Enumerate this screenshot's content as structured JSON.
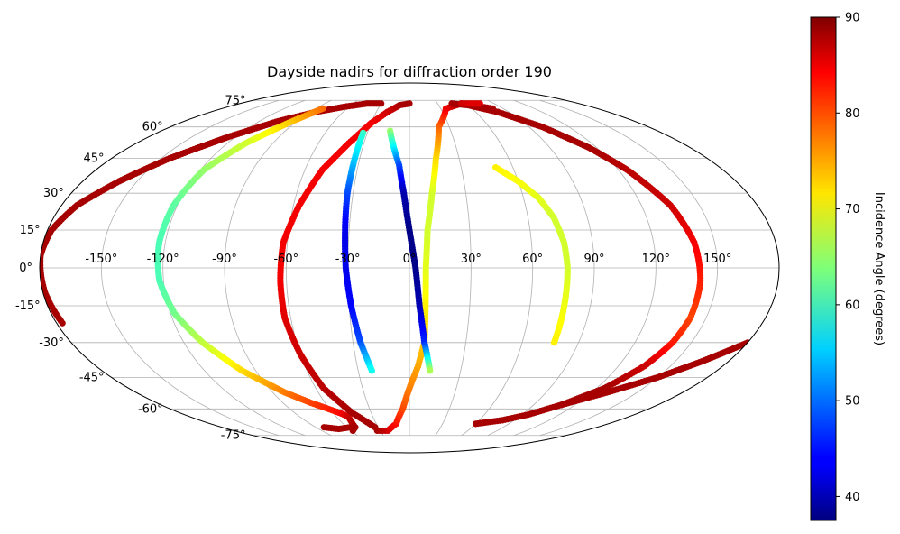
{
  "chart_data": {
    "type": "scatter",
    "projection": "mollweide",
    "title": "Dayside nadirs for diffraction order 190",
    "grid": true,
    "lon_ticks": [
      "-150°",
      "-120°",
      "-90°",
      "-60°",
      "-30°",
      "0°",
      "30°",
      "60°",
      "90°",
      "120°",
      "150°"
    ],
    "lon_tick_values": [
      -150,
      -120,
      -90,
      -60,
      -30,
      0,
      30,
      60,
      90,
      120,
      150
    ],
    "lat_ticks": [
      "75°",
      "60°",
      "45°",
      "30°",
      "15°",
      "0°",
      "-15°",
      "-30°",
      "-45°",
      "-60°",
      "-75°"
    ],
    "lat_tick_values": [
      75,
      60,
      45,
      30,
      15,
      0,
      -15,
      -30,
      -45,
      -60,
      -75
    ],
    "colorbar": {
      "label": "Incidence Angle (degrees)",
      "colormap": "jet",
      "range": [
        37.5,
        90
      ],
      "ticks": [
        "40",
        "50",
        "60",
        "70",
        "80",
        "90"
      ],
      "tick_values": [
        40,
        50,
        60,
        70,
        80,
        90
      ]
    },
    "series": [
      {
        "points": [
          [
            -177,
            -22,
            88
          ],
          [
            -179,
            -10,
            88
          ],
          [
            -180,
            5,
            88
          ],
          [
            -178,
            15,
            88
          ],
          [
            -172,
            25,
            88
          ],
          [
            -160,
            35,
            88
          ],
          [
            -145,
            45,
            88
          ],
          [
            -125,
            55,
            88
          ],
          [
            -105,
            63,
            88
          ],
          [
            -85,
            68,
            88
          ],
          [
            -65,
            71,
            88
          ],
          [
            -45,
            73,
            88
          ],
          [
            -30,
            73,
            88
          ]
        ]
      },
      {
        "points": [
          [
            -83,
            70,
            78
          ],
          [
            -95,
            62,
            73
          ],
          [
            -108,
            52,
            68
          ],
          [
            -118,
            40,
            65
          ],
          [
            -122,
            25,
            62
          ],
          [
            -123,
            10,
            61
          ],
          [
            -122,
            -5,
            61
          ],
          [
            -118,
            -18,
            63
          ],
          [
            -110,
            -30,
            67
          ],
          [
            -98,
            -42,
            72
          ],
          [
            -82,
            -52,
            77
          ],
          [
            -70,
            -57,
            80
          ],
          [
            -55,
            -62,
            83
          ],
          [
            -50,
            -64,
            86
          ],
          [
            -52,
            -70,
            88
          ],
          [
            -58,
            -72,
            88
          ]
        ]
      },
      {
        "points": [
          [
            -57,
            -70,
            88
          ],
          [
            -70,
            -71,
            88
          ],
          [
            -82,
            -70,
            88
          ]
        ]
      },
      {
        "points": [
          [
            -33,
            -72,
            88
          ],
          [
            -22,
            -72,
            86
          ],
          [
            -12,
            -68,
            83
          ],
          [
            -5,
            -60,
            80
          ],
          [
            0,
            -50,
            77
          ],
          [
            5,
            -40,
            75
          ],
          [
            8,
            -30,
            73
          ],
          [
            8,
            -15,
            71
          ],
          [
            8,
            0,
            69
          ],
          [
            9,
            15,
            68
          ],
          [
            12,
            30,
            68
          ],
          [
            16,
            45,
            72
          ],
          [
            22,
            60,
            78
          ],
          [
            35,
            70,
            84
          ],
          [
            55,
            73,
            88
          ],
          [
            80,
            70,
            88
          ]
        ]
      },
      {
        "points": [
          [
            0,
            73,
            88
          ],
          [
            -10,
            72,
            88
          ],
          [
            -20,
            68,
            86
          ],
          [
            -30,
            62,
            84
          ],
          [
            -40,
            52,
            84
          ],
          [
            -50,
            40,
            84
          ],
          [
            -57,
            25,
            84
          ],
          [
            -62,
            10,
            84
          ],
          [
            -63,
            -5,
            84
          ],
          [
            -63,
            -20,
            85
          ],
          [
            -60,
            -35,
            86
          ],
          [
            -55,
            -50,
            87
          ],
          [
            -45,
            -62,
            88
          ],
          [
            -33,
            -70,
            88
          ]
        ]
      },
      {
        "points": [
          [
            -33,
            57,
            60
          ],
          [
            -33,
            45,
            55
          ],
          [
            -33,
            30,
            48
          ],
          [
            -32,
            15,
            43
          ],
          [
            -31,
            0,
            43
          ],
          [
            -29,
            -15,
            44
          ],
          [
            -26,
            -30,
            48
          ],
          [
            -22,
            -42,
            58
          ]
        ]
      },
      {
        "points": [
          [
            -14,
            58,
            65
          ],
          [
            -10,
            50,
            57
          ],
          [
            -6,
            42,
            48
          ],
          [
            -3,
            30,
            40
          ],
          [
            0,
            15,
            38
          ],
          [
            3,
            0,
            38
          ],
          [
            5,
            -15,
            40
          ],
          [
            8,
            -30,
            46
          ],
          [
            12,
            -42,
            66
          ]
        ]
      },
      {
        "points": [
          [
            45,
            73,
            88
          ],
          [
            60,
            72,
            88
          ],
          [
            80,
            68,
            88
          ],
          [
            100,
            60,
            88
          ],
          [
            115,
            50,
            88
          ],
          [
            125,
            40,
            87
          ],
          [
            135,
            25,
            86
          ],
          [
            140,
            10,
            84
          ],
          [
            142,
            -5,
            82
          ],
          [
            142,
            -20,
            80
          ],
          [
            140,
            -30,
            82
          ],
          [
            135,
            -40,
            86
          ],
          [
            125,
            -50,
            88
          ],
          [
            110,
            -58,
            88
          ],
          [
            95,
            -63,
            88
          ],
          [
            80,
            -66,
            88
          ],
          [
            60,
            -68,
            88
          ]
        ]
      },
      {
        "points": [
          [
            110,
            -58,
            88
          ],
          [
            130,
            -52,
            88
          ],
          [
            150,
            -45,
            88
          ],
          [
            165,
            -38,
            88
          ],
          [
            180,
            -30,
            88
          ]
        ]
      },
      {
        "points": [
          [
            50,
            41,
            71
          ],
          [
            60,
            35,
            70
          ],
          [
            68,
            28,
            69
          ],
          [
            73,
            20,
            68
          ],
          [
            76,
            10,
            68
          ],
          [
            77,
            0,
            68
          ],
          [
            77,
            -10,
            69
          ],
          [
            77,
            -20,
            70
          ],
          [
            77,
            -30,
            71
          ]
        ]
      },
      {
        "points": [
          [
            55,
            73,
            86
          ],
          [
            65,
            73,
            85
          ],
          [
            75,
            73,
            85
          ]
        ]
      }
    ]
  }
}
